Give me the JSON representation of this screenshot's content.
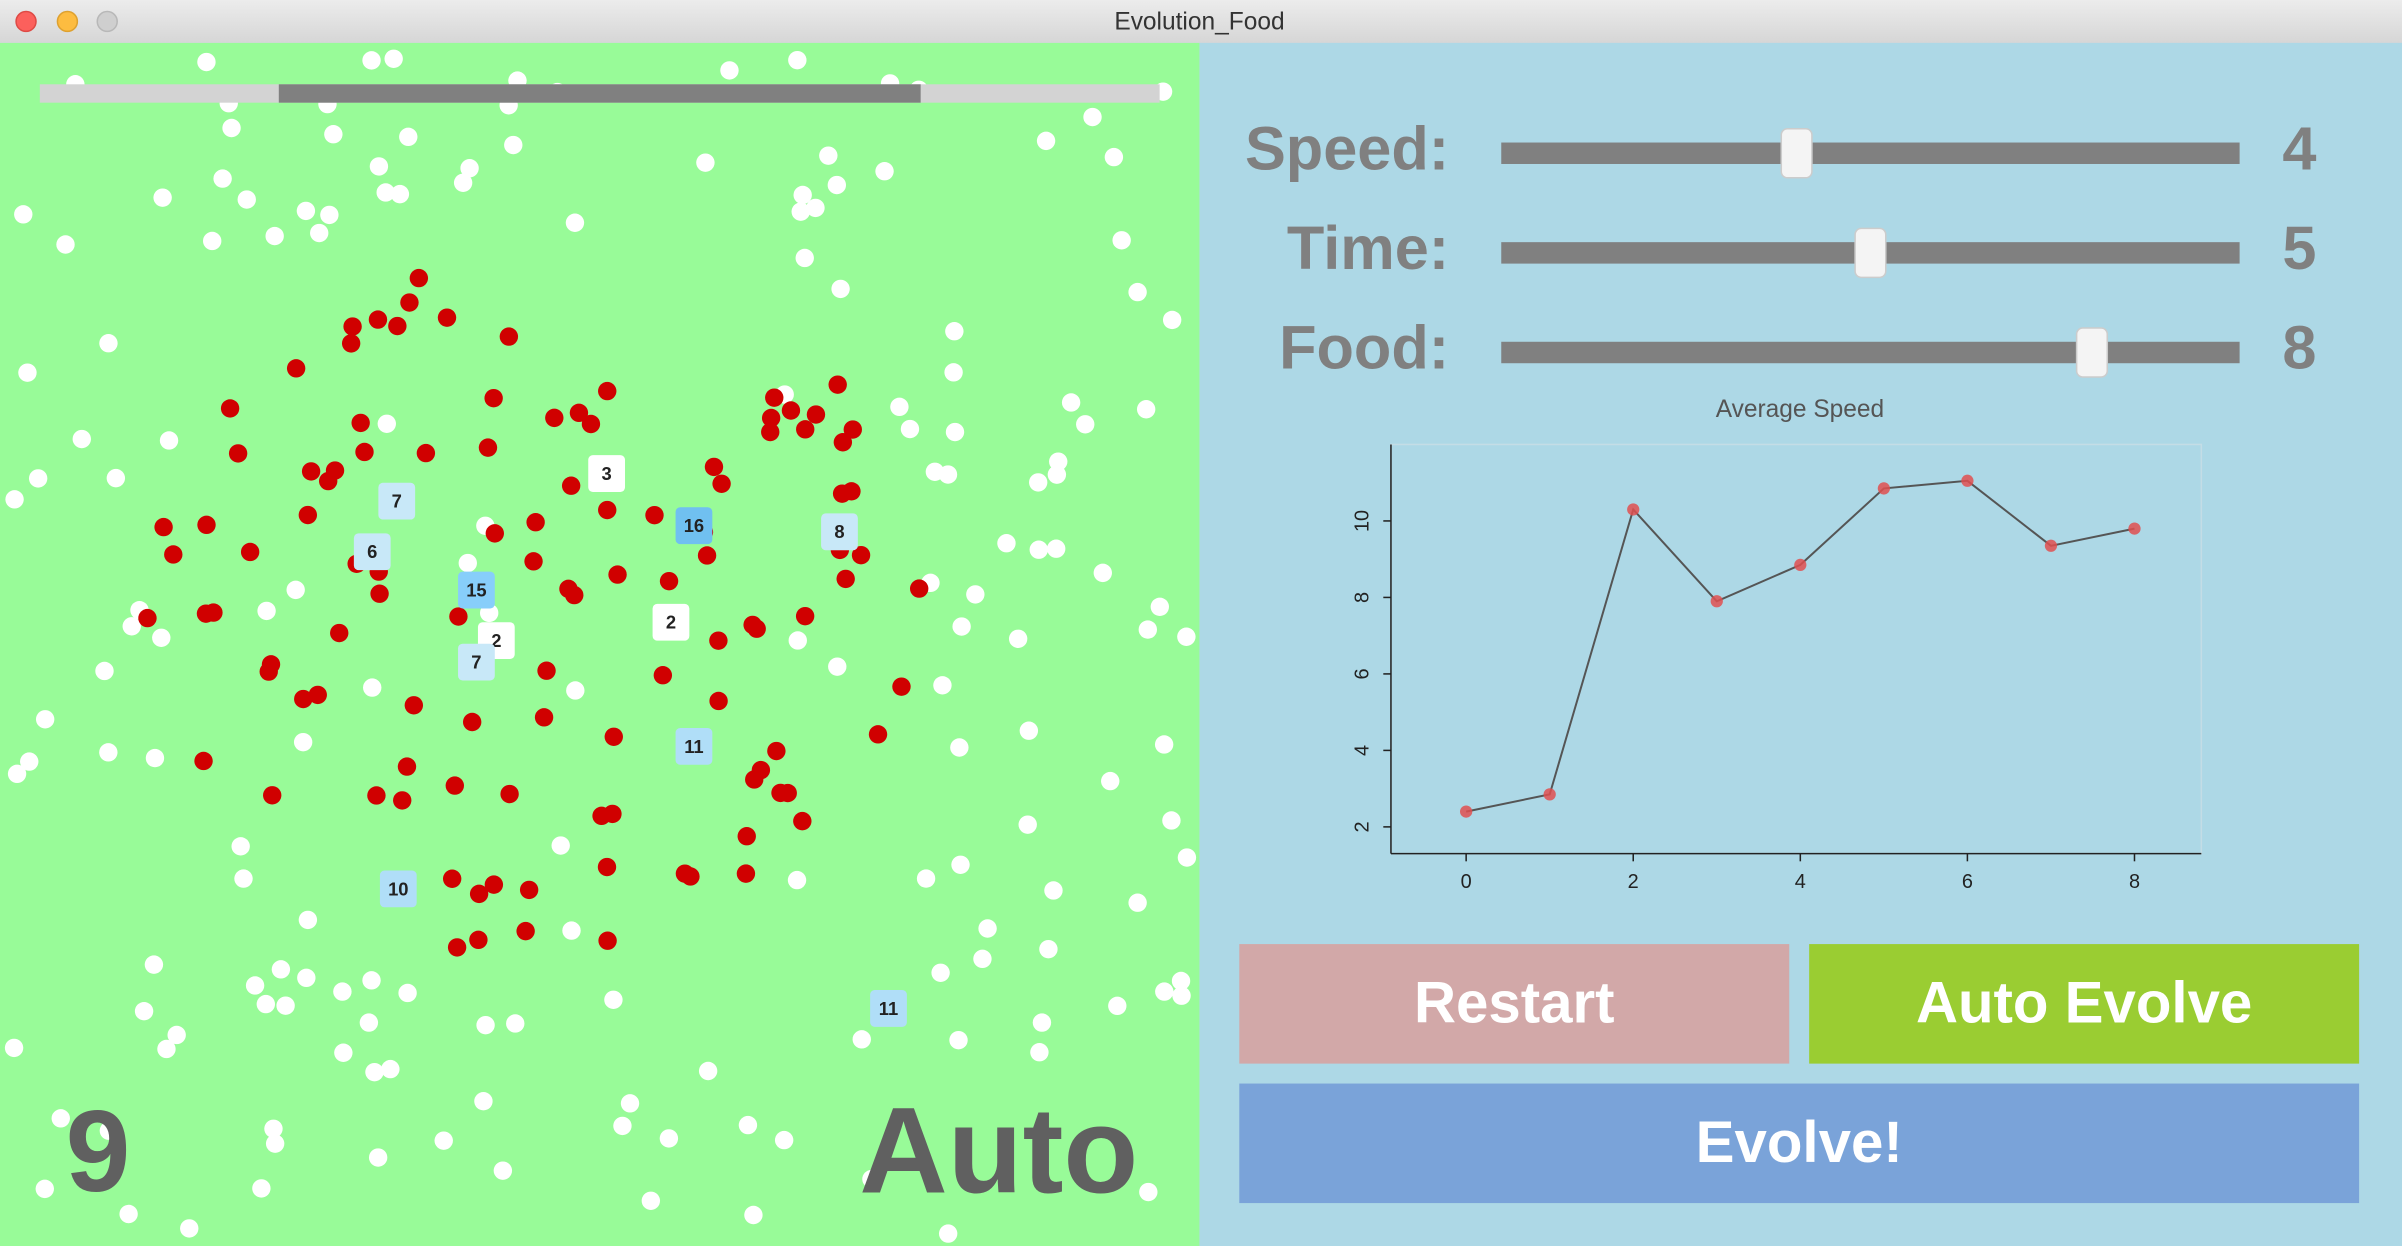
{
  "window": {
    "title": "Evolution_Food"
  },
  "simulation": {
    "generation": 9,
    "mode": "Auto",
    "creatures": [
      7,
      6,
      15,
      3,
      16,
      8,
      2,
      2,
      7,
      11,
      10,
      11
    ]
  },
  "controls": {
    "range": [
      0,
      10
    ],
    "sliders": [
      {
        "label": "Speed:",
        "value": 4
      },
      {
        "label": "Time:",
        "value": 5
      },
      {
        "label": "Food:",
        "value": 8
      }
    ]
  },
  "chart_data": {
    "type": "line",
    "title": "Average Speed",
    "x": [
      0,
      1,
      2,
      3,
      4,
      5,
      6,
      7,
      8
    ],
    "values": [
      2.4,
      2.85,
      10.3,
      7.9,
      8.85,
      10.85,
      11.05,
      9.35,
      9.8
    ],
    "color": "#555555",
    "marker_color": "#e05050",
    "xlim": [
      -0.9,
      8.8
    ],
    "ylim": [
      1.3,
      12
    ],
    "xticks": [
      0,
      2,
      4,
      6,
      8
    ],
    "yticks": [
      2,
      4,
      6,
      8,
      10
    ]
  },
  "buttons": [
    "Restart",
    "Auto Evolve",
    "Evolve!"
  ]
}
